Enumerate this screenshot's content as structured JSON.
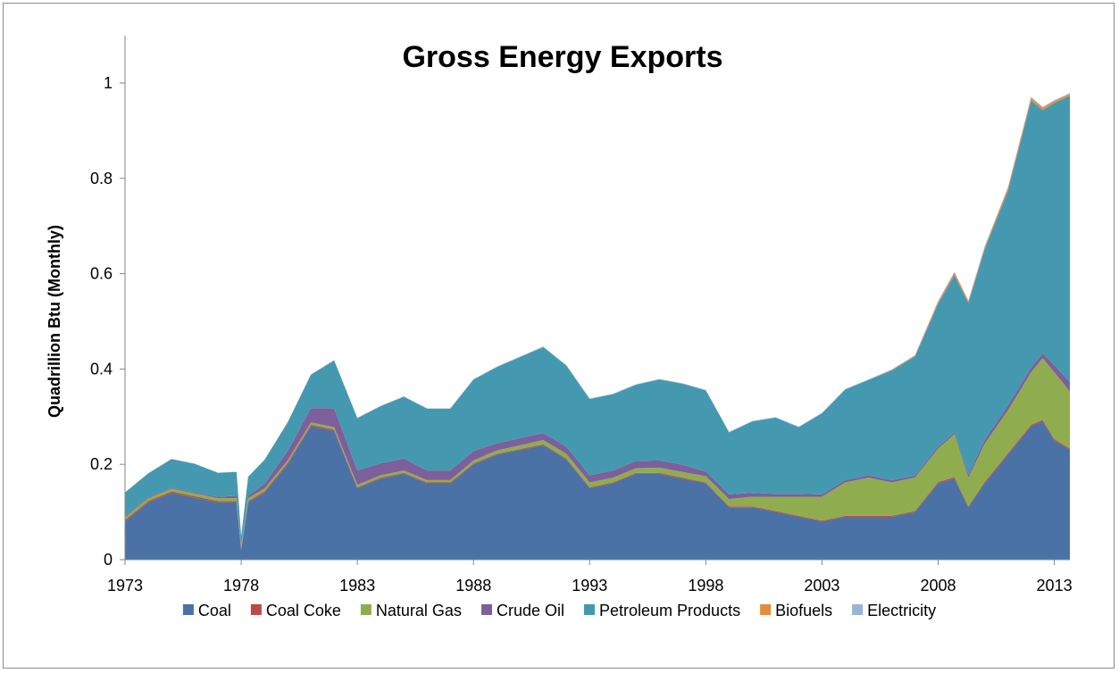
{
  "chart_data": {
    "type": "area",
    "stacked": true,
    "title": "Gross Energy Exports",
    "ylabel": "Quadrillion Btu (Monthly)",
    "xlabel": "",
    "xlim": [
      1973,
      2013.67
    ],
    "ylim": [
      0,
      1.0
    ],
    "yticks": [
      0,
      0.2,
      0.4,
      0.6,
      0.8,
      1
    ],
    "ytick_labels": [
      "0",
      "0.2",
      "0.4",
      "0.6",
      "0.8",
      "1"
    ],
    "xticks": [
      1973,
      1978,
      1983,
      1988,
      1993,
      1998,
      2003,
      2008,
      2013
    ],
    "xtick_labels": [
      "1973",
      "1978",
      "1983",
      "1988",
      "1993",
      "1998",
      "2003",
      "2008",
      "2013"
    ],
    "grid": false,
    "legend_position": "bottom",
    "x": [
      1973.0,
      1974.0,
      1975.0,
      1976.0,
      1977.0,
      1977.8,
      1978.0,
      1978.3,
      1979.0,
      1980.0,
      1981.0,
      1982.0,
      1983.0,
      1984.0,
      1985.0,
      1986.0,
      1987.0,
      1988.0,
      1989.0,
      1990.0,
      1991.0,
      1992.0,
      1993.0,
      1994.0,
      1995.0,
      1996.0,
      1997.0,
      1998.0,
      1999.0,
      2000.0,
      2001.0,
      2002.0,
      2003.0,
      2004.0,
      2005.0,
      2006.0,
      2007.0,
      2008.0,
      2008.7,
      2009.3,
      2010.0,
      2011.0,
      2012.0,
      2012.5,
      2013.0,
      2013.67
    ],
    "series": [
      {
        "name": "Coal",
        "color": "#4a72a6",
        "values": [
          0.08,
          0.12,
          0.14,
          0.13,
          0.12,
          0.12,
          0.02,
          0.12,
          0.14,
          0.2,
          0.28,
          0.27,
          0.15,
          0.17,
          0.18,
          0.16,
          0.16,
          0.2,
          0.22,
          0.23,
          0.24,
          0.21,
          0.15,
          0.16,
          0.18,
          0.18,
          0.17,
          0.16,
          0.11,
          0.11,
          0.1,
          0.09,
          0.08,
          0.09,
          0.09,
          0.09,
          0.1,
          0.16,
          0.17,
          0.11,
          0.16,
          0.22,
          0.28,
          0.29,
          0.25,
          0.23
        ]
      },
      {
        "name": "Coal Coke",
        "color": "#b94c48",
        "values": [
          0.003,
          0.003,
          0.003,
          0.003,
          0.003,
          0.003,
          0.002,
          0.003,
          0.003,
          0.003,
          0.003,
          0.003,
          0.002,
          0.002,
          0.002,
          0.002,
          0.002,
          0.002,
          0.002,
          0.002,
          0.002,
          0.002,
          0.002,
          0.002,
          0.002,
          0.002,
          0.002,
          0.002,
          0.002,
          0.002,
          0.002,
          0.002,
          0.002,
          0.002,
          0.002,
          0.002,
          0.002,
          0.003,
          0.003,
          0.002,
          0.003,
          0.003,
          0.003,
          0.003,
          0.003,
          0.003
        ]
      },
      {
        "name": "Natural Gas",
        "color": "#8fad4f",
        "values": [
          0.006,
          0.006,
          0.006,
          0.006,
          0.006,
          0.006,
          0.004,
          0.006,
          0.006,
          0.005,
          0.005,
          0.005,
          0.005,
          0.005,
          0.005,
          0.005,
          0.005,
          0.006,
          0.007,
          0.008,
          0.009,
          0.01,
          0.01,
          0.01,
          0.01,
          0.011,
          0.012,
          0.013,
          0.015,
          0.02,
          0.03,
          0.04,
          0.05,
          0.07,
          0.08,
          0.07,
          0.07,
          0.07,
          0.09,
          0.06,
          0.08,
          0.09,
          0.11,
          0.13,
          0.14,
          0.12
        ]
      },
      {
        "name": "Crude Oil",
        "color": "#7d5f9c",
        "values": [
          0.002,
          0.002,
          0.002,
          0.002,
          0.003,
          0.005,
          0.003,
          0.005,
          0.01,
          0.02,
          0.03,
          0.04,
          0.03,
          0.025,
          0.025,
          0.02,
          0.02,
          0.02,
          0.015,
          0.015,
          0.015,
          0.015,
          0.015,
          0.015,
          0.015,
          0.015,
          0.015,
          0.01,
          0.01,
          0.008,
          0.006,
          0.006,
          0.005,
          0.005,
          0.005,
          0.005,
          0.004,
          0.004,
          0.004,
          0.006,
          0.008,
          0.01,
          0.01,
          0.01,
          0.015,
          0.02
        ]
      },
      {
        "name": "Petroleum Products",
        "color": "#4499b0",
        "values": [
          0.05,
          0.05,
          0.06,
          0.06,
          0.05,
          0.05,
          0.02,
          0.04,
          0.05,
          0.06,
          0.07,
          0.1,
          0.11,
          0.12,
          0.13,
          0.13,
          0.13,
          0.15,
          0.16,
          0.17,
          0.18,
          0.17,
          0.16,
          0.16,
          0.16,
          0.17,
          0.17,
          0.17,
          0.13,
          0.15,
          0.16,
          0.14,
          0.17,
          0.19,
          0.2,
          0.23,
          0.25,
          0.3,
          0.33,
          0.36,
          0.4,
          0.45,
          0.56,
          0.51,
          0.55,
          0.6
        ]
      },
      {
        "name": "Biofuels",
        "color": "#e48b3f",
        "values": [
          0,
          0,
          0,
          0,
          0,
          0,
          0,
          0,
          0,
          0,
          0,
          0,
          0,
          0,
          0,
          0,
          0,
          0,
          0,
          0,
          0,
          0,
          0,
          0,
          0,
          0,
          0,
          0,
          0,
          0,
          0,
          0,
          0,
          0,
          0,
          0.001,
          0.002,
          0.004,
          0.005,
          0.004,
          0.004,
          0.006,
          0.006,
          0.005,
          0.004,
          0.004
        ]
      },
      {
        "name": "Electricity",
        "color": "#98b4d6",
        "values": [
          0.0005,
          0.0005,
          0.0005,
          0.0005,
          0.0005,
          0.0005,
          0.0005,
          0.0005,
          0.0005,
          0.0005,
          0.0005,
          0.0005,
          0.0005,
          0.0005,
          0.0005,
          0.0005,
          0.0005,
          0.0005,
          0.001,
          0.001,
          0.001,
          0.001,
          0.001,
          0.001,
          0.001,
          0.001,
          0.001,
          0.001,
          0.001,
          0.001,
          0.001,
          0.001,
          0.001,
          0.001,
          0.001,
          0.001,
          0.001,
          0.002,
          0.002,
          0.002,
          0.002,
          0.002,
          0.002,
          0.002,
          0.002,
          0.002
        ]
      }
    ]
  }
}
